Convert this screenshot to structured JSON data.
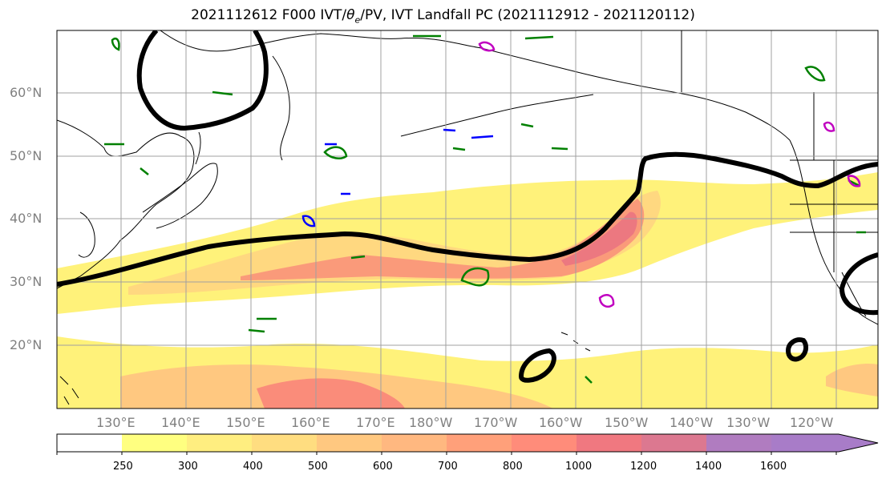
{
  "figure": {
    "title_prefix": "2021112612 F000 IVT/",
    "title_theta": "θ",
    "title_sub": "e",
    "title_suffix": "/PV, IVT Landfall PC (2021112912 - 2021120112)"
  },
  "map": {
    "lat_labels": [
      "60°N",
      "50°N",
      "40°N",
      "30°N",
      "20°N"
    ],
    "lon_labels": [
      "130°E",
      "140°E",
      "150°E",
      "160°E",
      "170°E",
      "180°W",
      "170°W",
      "160°W",
      "150°W",
      "140°W",
      "130°W",
      "120°W"
    ],
    "colors": {
      "coast": "#000000",
      "grid": "#a0a0a0",
      "pc_contour": "#000000",
      "theta_contour": "#008000",
      "pv_blue": "#0000ff",
      "pv_magenta": "#c000c0"
    }
  },
  "colorbar": {
    "levels": [
      "250",
      "300",
      "400",
      "500",
      "600",
      "700",
      "800",
      "1000",
      "1200",
      "1400",
      "1600"
    ],
    "colors": [
      "#ffffff",
      "#ffff80",
      "#ffee80",
      "#ffdd80",
      "#ffc880",
      "#ffb880",
      "#ffa07a",
      "#ff8c7a",
      "#f07880",
      "#dc7890",
      "#b07cc0",
      "#a87cc8"
    ]
  }
}
